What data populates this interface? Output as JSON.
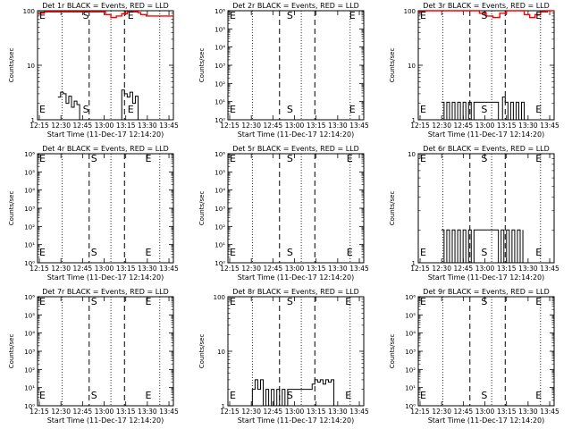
{
  "chart_data": [
    {
      "type": "line",
      "title": "Det 1r BLACK = Events, RED = LLD",
      "ylabel": "Counts/sec",
      "xlabel": "Start Time (11-Dec-17 12:14:20)",
      "scale": "log",
      "ylim": [
        1,
        100
      ],
      "yticks": [
        {
          "v": 1,
          "label": "1"
        },
        {
          "v": 10,
          "label": "10"
        },
        {
          "v": 100,
          "label": "100"
        }
      ],
      "xticks": [
        "12:15",
        "12:30",
        "12:45",
        "13:00",
        "13:15",
        "13:30",
        "13:45"
      ],
      "markers": [
        {
          "label": "E",
          "t": 0.0
        },
        {
          "label": "S",
          "t": 0.32
        },
        {
          "label": "E",
          "t": 0.65
        }
      ],
      "series": [
        {
          "color": "#000000",
          "x": [
            0.15,
            0.17,
            0.19,
            0.21,
            0.23,
            0.25,
            0.27,
            0.29,
            0.31,
            0.33,
            0.6,
            0.62,
            0.64,
            0.66,
            0.68,
            0.7,
            0.72,
            0.74
          ],
          "y": [
            2.6,
            3.2,
            3.0,
            2.0,
            2.7,
            1.7,
            2.2,
            1.9,
            1.0,
            1.0,
            1.0,
            3.5,
            3.0,
            2.6,
            3.2,
            2.0,
            2.7,
            1.0
          ]
        },
        {
          "color": "#ff0000",
          "x": [
            0.0,
            0.05,
            0.45,
            0.5,
            0.54,
            0.58,
            0.62,
            0.66,
            0.7,
            0.74,
            0.76,
            0.8,
            0.85,
            0.9,
            0.95,
            1.0
          ],
          "y": [
            90,
            95,
            95,
            85,
            75,
            80,
            88,
            95,
            95,
            92,
            85,
            80,
            80,
            80,
            80,
            80
          ]
        }
      ]
    },
    {
      "type": "line",
      "title": "Det 2r BLACK = Events, RED = LLD",
      "ylabel": "Counts/sec",
      "xlabel": "Start Time (11-Dec-17 12:14:20)",
      "scale": "log",
      "ylim": [
        1,
        1000000.0
      ],
      "yticks": [
        {
          "v": 1,
          "label": "10⁰"
        },
        {
          "v": 10,
          "label": "10¹"
        },
        {
          "v": 100,
          "label": "10²"
        },
        {
          "v": 1000,
          "label": "10³"
        },
        {
          "v": 10000,
          "label": "10⁴"
        },
        {
          "v": 100000,
          "label": "10⁵"
        },
        {
          "v": 1000000,
          "label": "10⁶"
        }
      ],
      "xticks": [
        "12:15",
        "12:30",
        "12:45",
        "13:00",
        "13:15",
        "13:30",
        "13:45"
      ],
      "markers": [
        {
          "label": "E",
          "t": 0.0
        },
        {
          "label": "S",
          "t": 0.42
        },
        {
          "label": "E",
          "t": 0.88
        }
      ],
      "series": []
    },
    {
      "type": "line",
      "title": "Det 3r BLACK = Events, RED = LLD",
      "ylabel": "Counts/sec",
      "xlabel": "Start Time (11-Dec-17 12:14:20)",
      "scale": "log",
      "ylim": [
        1,
        100
      ],
      "yticks": [
        {
          "v": 1,
          "label": "1"
        },
        {
          "v": 10,
          "label": "10"
        },
        {
          "v": 100,
          "label": "100"
        }
      ],
      "xticks": [
        "12:15",
        "12:30",
        "12:45",
        "13:00",
        "13:15",
        "13:30",
        "13:45"
      ],
      "markers": [
        {
          "label": "E",
          "t": 0.0
        },
        {
          "label": "S",
          "t": 0.45
        },
        {
          "label": "E",
          "t": 0.85
        }
      ],
      "series": [
        {
          "color": "#000000",
          "x": [
            0.17,
            0.19,
            0.21,
            0.23,
            0.25,
            0.27,
            0.29,
            0.31,
            0.33,
            0.35,
            0.37,
            0.39,
            0.41,
            0.59,
            0.62,
            0.64,
            0.66,
            0.68,
            0.7,
            0.72,
            0.74,
            0.76,
            0.78
          ],
          "y": [
            2.1,
            1.0,
            2.1,
            1.0,
            2.1,
            1.0,
            2.1,
            1.0,
            2.1,
            1.0,
            2.1,
            1.0,
            2.1,
            1.0,
            2.6,
            2.1,
            1.0,
            2.1,
            1.0,
            2.1,
            1.0,
            2.1,
            1.0
          ]
        },
        {
          "color": "#ff0000",
          "x": [
            0.0,
            0.05,
            0.4,
            0.45,
            0.5,
            0.55,
            0.6,
            0.65,
            0.75,
            0.78,
            0.82,
            0.86,
            0.9,
            0.95,
            1.0
          ],
          "y": [
            95,
            100,
            100,
            90,
            80,
            75,
            90,
            100,
            100,
            85,
            75,
            85,
            95,
            100,
            100
          ]
        }
      ]
    },
    {
      "type": "line",
      "title": "Det 4r BLACK = Events, RED = LLD",
      "ylabel": "Counts/sec",
      "xlabel": "Start Time (11-Dec-17 12:14:20)",
      "scale": "log",
      "ylim": [
        1,
        1000000.0
      ],
      "yticks": [
        {
          "v": 1,
          "label": "10⁰"
        },
        {
          "v": 10,
          "label": "10¹"
        },
        {
          "v": 100,
          "label": "10²"
        },
        {
          "v": 1000,
          "label": "10³"
        },
        {
          "v": 10000,
          "label": "10⁴"
        },
        {
          "v": 100000,
          "label": "10⁵"
        },
        {
          "v": 1000000,
          "label": "10⁶"
        }
      ],
      "xticks": [
        "12:15",
        "12:30",
        "12:45",
        "13:00",
        "13:15",
        "13:30",
        "13:45"
      ],
      "markers": [
        {
          "label": "E",
          "t": 0.0
        },
        {
          "label": "S",
          "t": 0.38
        },
        {
          "label": "E",
          "t": 0.78
        }
      ],
      "series": []
    },
    {
      "type": "line",
      "title": "Det 5r BLACK = Events, RED = LLD",
      "ylabel": "Counts/sec",
      "xlabel": "Start Time (11-Dec-17 12:14:20)",
      "scale": "log",
      "ylim": [
        1,
        1000000.0
      ],
      "yticks": [
        {
          "v": 1,
          "label": "10⁰"
        },
        {
          "v": 10,
          "label": "10¹"
        },
        {
          "v": 100,
          "label": "10²"
        },
        {
          "v": 1000,
          "label": "10³"
        },
        {
          "v": 10000,
          "label": "10⁴"
        },
        {
          "v": 100000,
          "label": "10⁵"
        },
        {
          "v": 1000000,
          "label": "10⁶"
        }
      ],
      "xticks": [
        "12:15",
        "12:30",
        "12:45",
        "13:00",
        "13:15",
        "13:30",
        "13:45"
      ],
      "markers": [
        {
          "label": "E",
          "t": 0.0
        },
        {
          "label": "S",
          "t": 0.42
        },
        {
          "label": "E",
          "t": 0.86
        }
      ],
      "series": []
    },
    {
      "type": "line",
      "title": "Det 6r BLACK = Events, RED = LLD",
      "ylabel": "Counts/sec",
      "xlabel": "Start Time (11-Dec-17 12:14:20)",
      "scale": "log",
      "ylim": [
        1,
        10
      ],
      "yticks": [
        {
          "v": 1,
          "label": "1"
        },
        {
          "v": 10,
          "label": "10"
        }
      ],
      "xticks": [
        "12:15",
        "12:30",
        "12:45",
        "13:00",
        "13:15",
        "13:30",
        "13:45"
      ],
      "markers": [
        {
          "label": "E",
          "t": 0.0
        },
        {
          "label": "S",
          "t": 0.45
        },
        {
          "label": "E",
          "t": 0.85
        }
      ],
      "series": [
        {
          "color": "#000000",
          "x": [
            0.17,
            0.19,
            0.21,
            0.23,
            0.25,
            0.27,
            0.29,
            0.31,
            0.33,
            0.35,
            0.37,
            0.39,
            0.41,
            0.59,
            0.61,
            0.63,
            0.65,
            0.67,
            0.69,
            0.71,
            0.73,
            0.75,
            0.77
          ],
          "y": [
            2,
            1,
            2,
            1,
            2,
            1,
            2,
            1,
            2,
            1,
            2,
            1,
            2,
            1,
            2,
            1,
            2,
            1,
            2,
            1,
            2,
            1,
            2
          ]
        }
      ]
    },
    {
      "type": "line",
      "title": "Det 7r BLACK = Events, RED = LLD",
      "ylabel": "Counts/sec",
      "xlabel": "Start Time (11-Dec-17 12:14:20)",
      "scale": "log",
      "ylim": [
        1,
        1000000.0
      ],
      "yticks": [
        {
          "v": 1,
          "label": "10⁰"
        },
        {
          "v": 10,
          "label": "10¹"
        },
        {
          "v": 100,
          "label": "10²"
        },
        {
          "v": 1000,
          "label": "10³"
        },
        {
          "v": 10000,
          "label": "10⁴"
        },
        {
          "v": 100000,
          "label": "10⁵"
        },
        {
          "v": 1000000,
          "label": "10⁶"
        }
      ],
      "xticks": [
        "12:15",
        "12:30",
        "12:45",
        "13:00",
        "13:15",
        "13:30",
        "13:45"
      ],
      "markers": [
        {
          "label": "E",
          "t": 0.0
        },
        {
          "label": "S",
          "t": 0.38
        },
        {
          "label": "E",
          "t": 0.78
        }
      ],
      "series": []
    },
    {
      "type": "line",
      "title": "Det 8r BLACK = Events, RED = LLD",
      "ylabel": "Counts/sec",
      "xlabel": "Start Time (11-Dec-17 12:14:20)",
      "scale": "log",
      "ylim": [
        1,
        100
      ],
      "yticks": [
        {
          "v": 1,
          "label": "1"
        },
        {
          "v": 10,
          "label": "10"
        },
        {
          "v": 100,
          "label": "100"
        }
      ],
      "xticks": [
        "12:15",
        "12:30",
        "12:45",
        "13:00",
        "13:15",
        "13:30",
        "13:45"
      ],
      "markers": [
        {
          "label": "E",
          "t": 0.0
        },
        {
          "label": "S",
          "t": 0.42
        },
        {
          "label": "E",
          "t": 0.85
        }
      ],
      "series": [
        {
          "color": "#000000",
          "x": [
            0.16,
            0.18,
            0.2,
            0.22,
            0.24,
            0.26,
            0.28,
            0.3,
            0.32,
            0.34,
            0.36,
            0.38,
            0.4,
            0.42,
            0.44,
            0.62,
            0.64,
            0.66,
            0.68,
            0.7,
            0.72,
            0.74,
            0.76,
            0.78,
            0.8
          ],
          "y": [
            1,
            2,
            3,
            2,
            3,
            1,
            2,
            1,
            2,
            1,
            2,
            1,
            2,
            1,
            2,
            2.5,
            3,
            2.7,
            3,
            2.5,
            3,
            2.7,
            3,
            1,
            1
          ]
        }
      ]
    },
    {
      "type": "line",
      "title": "Det 9r BLACK = Events, RED = LLD",
      "ylabel": "Counts/sec",
      "xlabel": "Start Time (11-Dec-17 12:14:20)",
      "scale": "log",
      "ylim": [
        1,
        1000000.0
      ],
      "yticks": [
        {
          "v": 1,
          "label": "10⁰"
        },
        {
          "v": 10,
          "label": "10¹"
        },
        {
          "v": 100,
          "label": "10²"
        },
        {
          "v": 1000,
          "label": "10³"
        },
        {
          "v": 10000,
          "label": "10⁴"
        },
        {
          "v": 100000,
          "label": "10⁵"
        },
        {
          "v": 1000000,
          "label": "10⁶"
        }
      ],
      "xticks": [
        "12:15",
        "12:30",
        "12:45",
        "13:00",
        "13:15",
        "13:30",
        "13:45"
      ],
      "markers": [
        {
          "label": "E",
          "t": 0.0
        },
        {
          "label": "S",
          "t": 0.45
        },
        {
          "label": "E",
          "t": 0.85
        }
      ],
      "series": []
    }
  ]
}
